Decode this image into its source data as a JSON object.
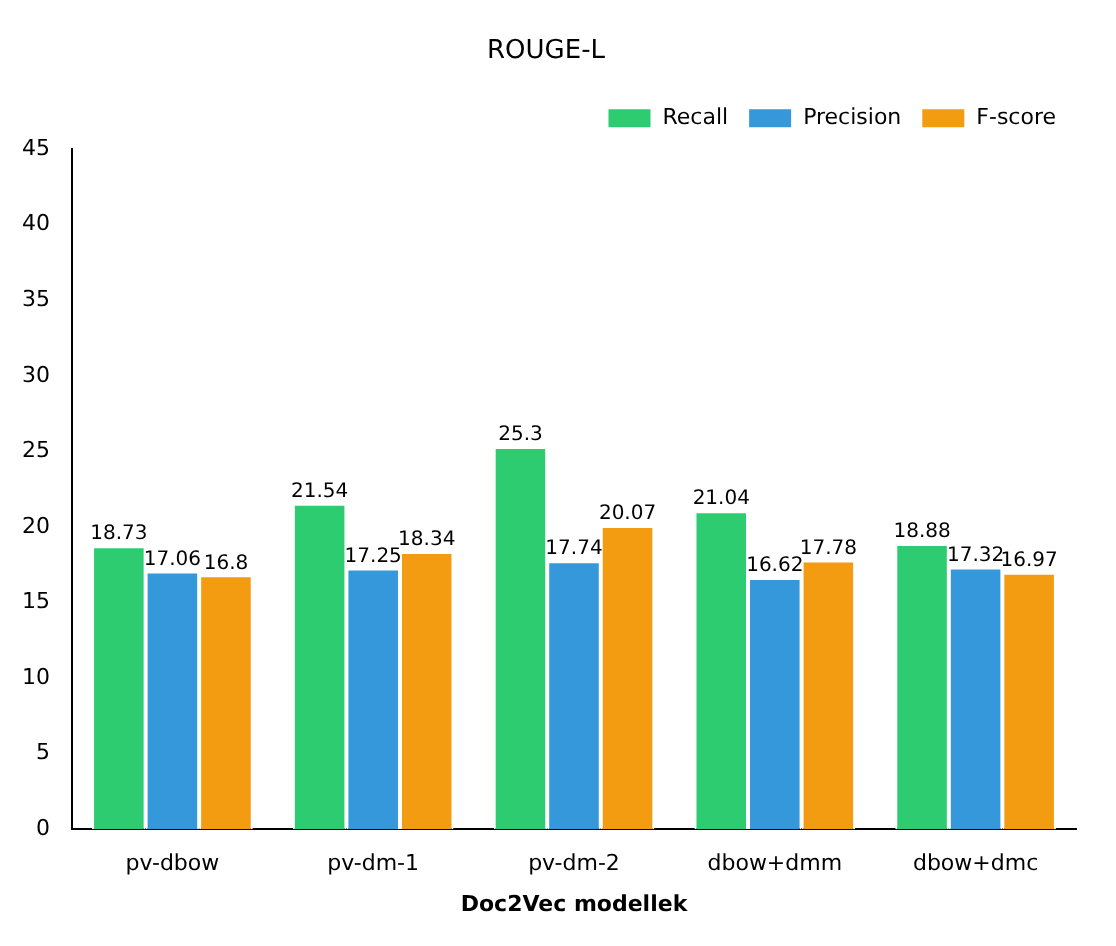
{
  "chart_data": {
    "type": "bar",
    "title": "ROUGE-L",
    "xlabel": "Doc2Vec modellek",
    "categories": [
      "pv-dbow",
      "pv-dm-1",
      "pv-dm-2",
      "dbow+dmm",
      "dbow+dmc"
    ],
    "series": [
      {
        "name": "Recall",
        "color": "#2ecc71",
        "values": [
          18.73,
          21.54,
          25.3,
          21.04,
          18.88
        ]
      },
      {
        "name": "Precision",
        "color": "#3498db",
        "values": [
          17.06,
          17.25,
          17.74,
          16.62,
          17.32
        ]
      },
      {
        "name": "F-score",
        "color": "#f39c12",
        "values": [
          16.8,
          18.34,
          20.07,
          17.78,
          16.97
        ]
      }
    ],
    "ylim": [
      0,
      45
    ],
    "yticks": [
      0,
      5,
      10,
      15,
      20,
      25,
      30,
      35,
      40,
      45
    ],
    "grid": false,
    "legend": "top right",
    "data_labels": true
  }
}
